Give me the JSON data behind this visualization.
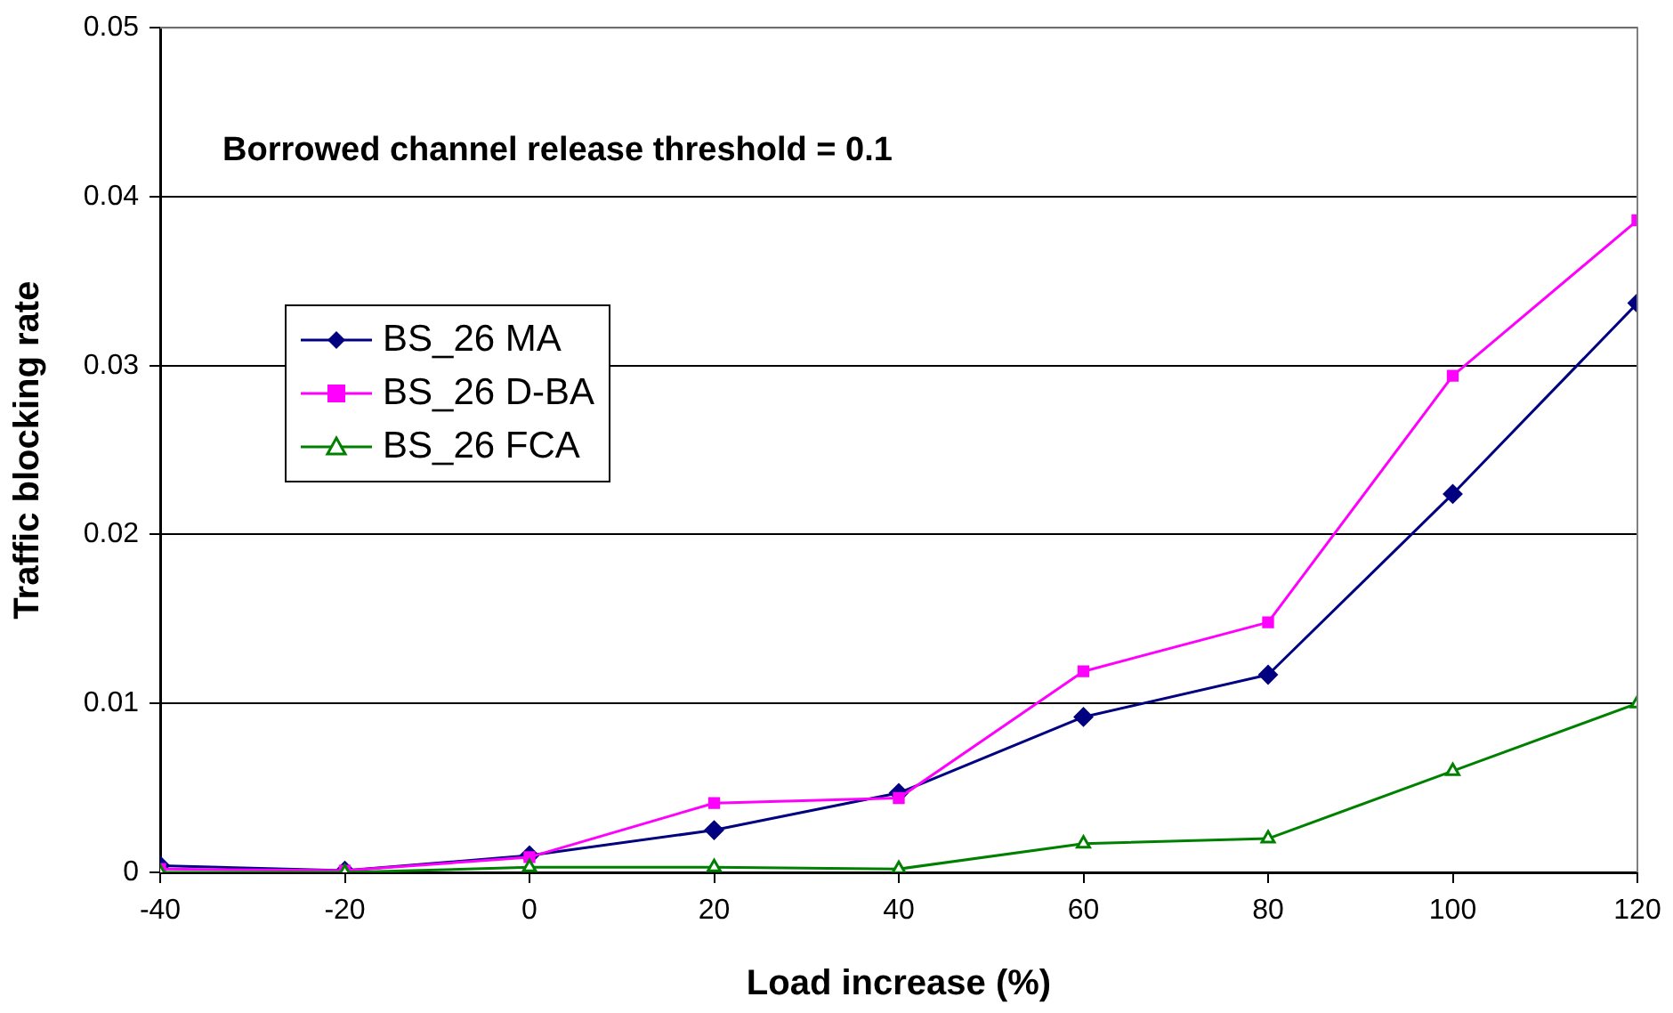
{
  "chart_data": {
    "type": "line",
    "xlabel": "Load increase (%)",
    "ylabel": "Traffic blocking rate",
    "annotations": [
      "Borrowed channel release threshold = 0.1"
    ],
    "x": [
      -40,
      -20,
      0,
      20,
      40,
      60,
      80,
      100,
      120
    ],
    "series": [
      {
        "name": "BS_26 MA",
        "color": "#000080",
        "marker": "diamond",
        "values": [
          0.0004,
          0.0001,
          0.001,
          0.0025,
          0.0047,
          0.0092,
          0.0117,
          0.0224,
          0.0337
        ]
      },
      {
        "name": "BS_26 D-BA",
        "color": "#ff00ff",
        "marker": "square",
        "values": [
          0.0002,
          0.0001,
          0.0009,
          0.0041,
          0.0044,
          0.0119,
          0.0148,
          0.0294,
          0.0386
        ]
      },
      {
        "name": "BS_26 FCA",
        "color": "#008000",
        "marker": "triangle",
        "values": [
          0,
          0,
          0.0003,
          0.0003,
          0.0002,
          0.0017,
          0.002,
          0.006,
          0.01
        ]
      }
    ],
    "xlim": [
      -40,
      120
    ],
    "xticks": [
      -40,
      -20,
      0,
      20,
      40,
      60,
      80,
      100,
      120
    ],
    "ylim": [
      0,
      0.05
    ],
    "yticks": [
      0,
      0.01,
      0.02,
      0.03,
      0.04,
      0.05
    ],
    "grid": "y",
    "legend": "left",
    "line_style": "solid"
  }
}
